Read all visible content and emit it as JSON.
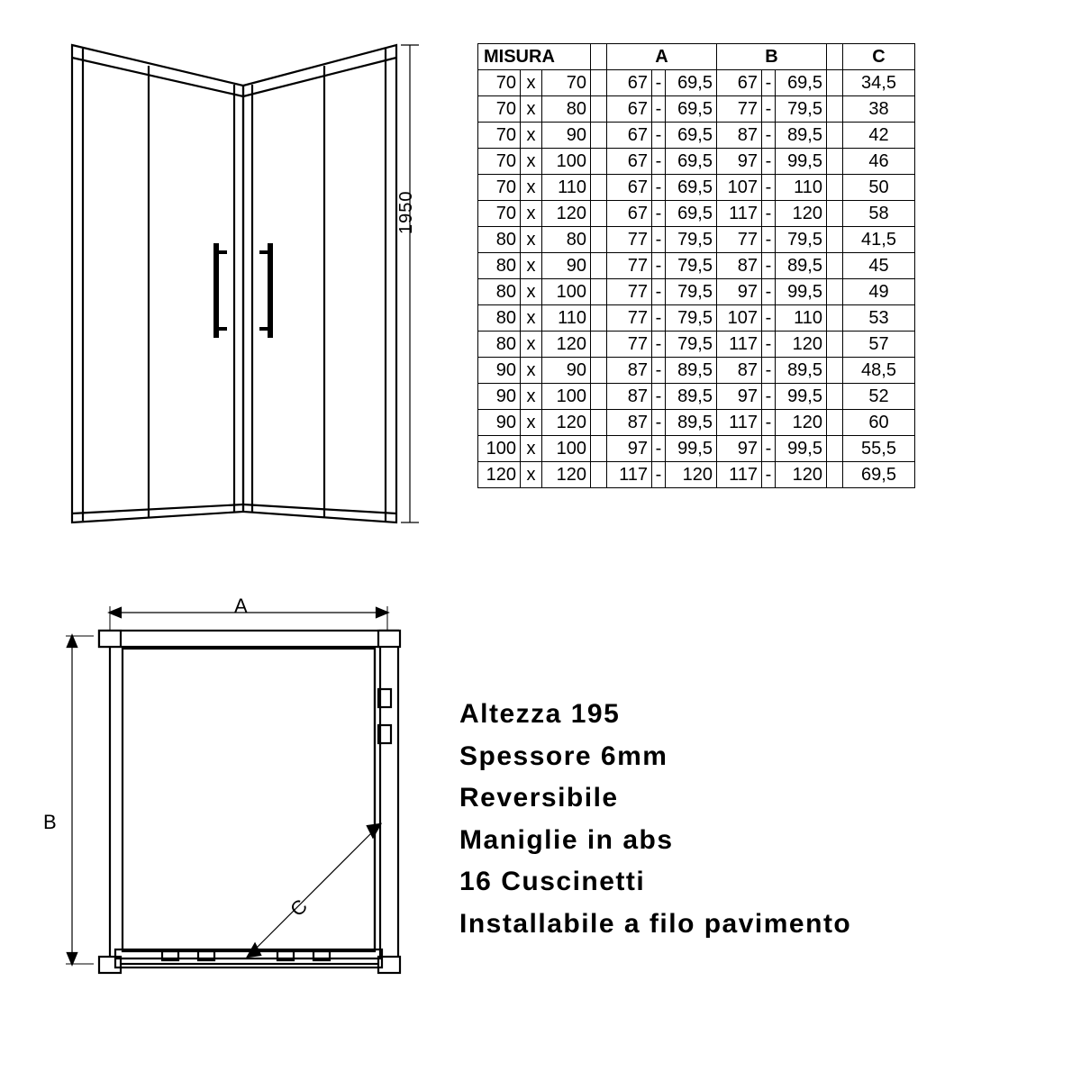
{
  "diagram": {
    "height_label": "1950",
    "dim_a": "A",
    "dim_b": "B",
    "dim_c": "C",
    "stroke_color": "#000000",
    "background": "#ffffff"
  },
  "table": {
    "header": {
      "misura": "MISURA",
      "a": "A",
      "b": "B",
      "c": "C"
    },
    "rows": [
      {
        "m1": "70",
        "x": "x",
        "m2": "70",
        "a1": "67",
        "ad": "-",
        "a2": "69,5",
        "b1": "67",
        "bd": "-",
        "b2": "69,5",
        "c": "34,5"
      },
      {
        "m1": "70",
        "x": "x",
        "m2": "80",
        "a1": "67",
        "ad": "-",
        "a2": "69,5",
        "b1": "77",
        "bd": "-",
        "b2": "79,5",
        "c": "38"
      },
      {
        "m1": "70",
        "x": "x",
        "m2": "90",
        "a1": "67",
        "ad": "-",
        "a2": "69,5",
        "b1": "87",
        "bd": "-",
        "b2": "89,5",
        "c": "42"
      },
      {
        "m1": "70",
        "x": "x",
        "m2": "100",
        "a1": "67",
        "ad": "-",
        "a2": "69,5",
        "b1": "97",
        "bd": "-",
        "b2": "99,5",
        "c": "46"
      },
      {
        "m1": "70",
        "x": "x",
        "m2": "110",
        "a1": "67",
        "ad": "-",
        "a2": "69,5",
        "b1": "107",
        "bd": "-",
        "b2": "110",
        "c": "50"
      },
      {
        "m1": "70",
        "x": "x",
        "m2": "120",
        "a1": "67",
        "ad": "-",
        "a2": "69,5",
        "b1": "117",
        "bd": "-",
        "b2": "120",
        "c": "58"
      },
      {
        "m1": "80",
        "x": "x",
        "m2": "80",
        "a1": "77",
        "ad": "-",
        "a2": "79,5",
        "b1": "77",
        "bd": "-",
        "b2": "79,5",
        "c": "41,5"
      },
      {
        "m1": "80",
        "x": "x",
        "m2": "90",
        "a1": "77",
        "ad": "-",
        "a2": "79,5",
        "b1": "87",
        "bd": "-",
        "b2": "89,5",
        "c": "45"
      },
      {
        "m1": "80",
        "x": "x",
        "m2": "100",
        "a1": "77",
        "ad": "-",
        "a2": "79,5",
        "b1": "97",
        "bd": "-",
        "b2": "99,5",
        "c": "49"
      },
      {
        "m1": "80",
        "x": "x",
        "m2": "110",
        "a1": "77",
        "ad": "-",
        "a2": "79,5",
        "b1": "107",
        "bd": "-",
        "b2": "110",
        "c": "53"
      },
      {
        "m1": "80",
        "x": "x",
        "m2": "120",
        "a1": "77",
        "ad": "-",
        "a2": "79,5",
        "b1": "117",
        "bd": "-",
        "b2": "120",
        "c": "57"
      },
      {
        "m1": "90",
        "x": "x",
        "m2": "90",
        "a1": "87",
        "ad": "-",
        "a2": "89,5",
        "b1": "87",
        "bd": "-",
        "b2": "89,5",
        "c": "48,5"
      },
      {
        "m1": "90",
        "x": "x",
        "m2": "100",
        "a1": "87",
        "ad": "-",
        "a2": "89,5",
        "b1": "97",
        "bd": "-",
        "b2": "99,5",
        "c": "52"
      },
      {
        "m1": "90",
        "x": "x",
        "m2": "120",
        "a1": "87",
        "ad": "-",
        "a2": "89,5",
        "b1": "117",
        "bd": "-",
        "b2": "120",
        "c": "60"
      },
      {
        "m1": "100",
        "x": "x",
        "m2": "100",
        "a1": "97",
        "ad": "-",
        "a2": "99,5",
        "b1": "97",
        "bd": "-",
        "b2": "99,5",
        "c": "55,5"
      },
      {
        "m1": "120",
        "x": "x",
        "m2": "120",
        "a1": "117",
        "ad": "-",
        "a2": "120",
        "b1": "117",
        "bd": "-",
        "b2": "120",
        "c": "69,5"
      }
    ],
    "border_color": "#000000",
    "font_size": 20
  },
  "specs": {
    "lines": [
      "Altezza 195",
      "Spessore 6mm",
      "Reversibile",
      "Maniglie in abs",
      "16 Cuscinetti",
      "Installabile a filo pavimento"
    ],
    "font_size": 30,
    "font_weight": "bold",
    "color": "#000000"
  }
}
